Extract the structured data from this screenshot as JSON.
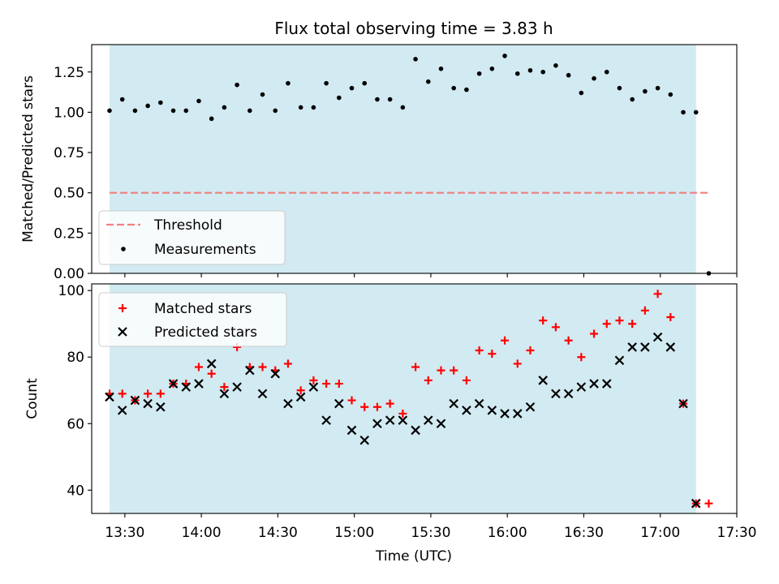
{
  "title": "Flux total observing time = 3.83 h",
  "xlabel": "Time (UTC)",
  "x_ticks": [
    "13:30",
    "14:00",
    "14:30",
    "15:00",
    "15:30",
    "16:00",
    "16:30",
    "17:00",
    "17:30"
  ],
  "chart_data": [
    {
      "type": "scatter",
      "ylabel": "Matched/Predicted stars",
      "xlim": [
        "13:17",
        "17:30"
      ],
      "ylim": [
        0,
        1.42
      ],
      "y_ticks": [
        "0.00",
        "0.25",
        "0.50",
        "0.75",
        "1.00",
        "1.25"
      ],
      "grid": false,
      "legend_position": "lower-left",
      "shaded_span": {
        "start": "13:24",
        "end": "17:14",
        "color": "#add8e6"
      },
      "threshold": {
        "name": "Threshold",
        "value": 0.5,
        "x_start": "13:24",
        "x_end": "17:19",
        "color": "#f08080"
      },
      "series": [
        {
          "name": "Measurements",
          "color": "#000000",
          "marker": "dot",
          "x": [
            "13:24",
            "13:29",
            "13:34",
            "13:39",
            "13:44",
            "13:49",
            "13:54",
            "13:59",
            "14:04",
            "14:09",
            "14:14",
            "14:19",
            "14:24",
            "14:29",
            "14:34",
            "14:39",
            "14:44",
            "14:49",
            "14:54",
            "14:59",
            "15:04",
            "15:09",
            "15:14",
            "15:19",
            "15:24",
            "15:29",
            "15:34",
            "15:39",
            "15:44",
            "15:49",
            "15:54",
            "15:59",
            "16:04",
            "16:09",
            "16:14",
            "16:19",
            "16:24",
            "16:29",
            "16:34",
            "16:39",
            "16:44",
            "16:49",
            "16:54",
            "16:59",
            "17:04",
            "17:09",
            "17:14",
            "17:19"
          ],
          "y": [
            1.01,
            1.08,
            1.01,
            1.04,
            1.06,
            1.01,
            1.01,
            1.07,
            0.96,
            1.03,
            1.17,
            1.01,
            1.11,
            1.01,
            1.18,
            1.03,
            1.03,
            1.18,
            1.09,
            1.15,
            1.18,
            1.08,
            1.08,
            1.03,
            1.33,
            1.19,
            1.27,
            1.15,
            1.14,
            1.24,
            1.27,
            1.35,
            1.24,
            1.26,
            1.25,
            1.29,
            1.23,
            1.12,
            1.21,
            1.25,
            1.15,
            1.08,
            1.13,
            1.15,
            1.11,
            1.0,
            1.0,
            0.0
          ]
        }
      ]
    },
    {
      "type": "scatter",
      "ylabel": "Count",
      "xlim": [
        "13:17",
        "17:30"
      ],
      "ylim": [
        33,
        102
      ],
      "y_ticks": [
        "40",
        "60",
        "80",
        "100"
      ],
      "grid": false,
      "legend_position": "upper-left",
      "shaded_span": {
        "start": "13:24",
        "end": "17:14",
        "color": "#add8e6"
      },
      "series": [
        {
          "name": "Matched stars",
          "color": "#ff0000",
          "marker": "plus",
          "x": [
            "13:24",
            "13:29",
            "13:34",
            "13:39",
            "13:44",
            "13:49",
            "13:54",
            "13:59",
            "14:04",
            "14:09",
            "14:14",
            "14:19",
            "14:24",
            "14:29",
            "14:34",
            "14:39",
            "14:44",
            "14:49",
            "14:54",
            "14:59",
            "15:04",
            "15:09",
            "15:14",
            "15:19",
            "15:24",
            "15:29",
            "15:34",
            "15:39",
            "15:44",
            "15:49",
            "15:54",
            "15:59",
            "16:04",
            "16:09",
            "16:14",
            "16:19",
            "16:24",
            "16:29",
            "16:34",
            "16:39",
            "16:44",
            "16:49",
            "16:54",
            "16:59",
            "17:04",
            "17:09",
            "17:14",
            "17:19"
          ],
          "y": [
            69,
            69,
            67,
            69,
            69,
            72,
            72,
            77,
            75,
            71,
            83,
            77,
            77,
            76,
            78,
            70,
            73,
            72,
            72,
            67,
            65,
            65,
            66,
            63,
            77,
            73,
            76,
            76,
            73,
            82,
            81,
            85,
            78,
            82,
            91,
            89,
            85,
            80,
            87,
            90,
            91,
            90,
            94,
            99,
            92,
            66,
            36,
            36
          ]
        },
        {
          "name": "Predicted stars",
          "color": "#000000",
          "marker": "x",
          "x": [
            "13:24",
            "13:29",
            "13:34",
            "13:39",
            "13:44",
            "13:49",
            "13:54",
            "13:59",
            "14:04",
            "14:09",
            "14:14",
            "14:19",
            "14:24",
            "14:29",
            "14:34",
            "14:39",
            "14:44",
            "14:49",
            "14:54",
            "14:59",
            "15:04",
            "15:09",
            "15:14",
            "15:19",
            "15:24",
            "15:29",
            "15:34",
            "15:39",
            "15:44",
            "15:49",
            "15:54",
            "15:59",
            "16:04",
            "16:09",
            "16:14",
            "16:19",
            "16:24",
            "16:29",
            "16:34",
            "16:39",
            "16:44",
            "16:49",
            "16:54",
            "16:59",
            "17:04",
            "17:09",
            "17:14"
          ],
          "y": [
            68,
            64,
            67,
            66,
            65,
            72,
            71,
            72,
            78,
            69,
            71,
            76,
            69,
            75,
            66,
            68,
            71,
            61,
            66,
            58,
            55,
            60,
            61,
            61,
            58,
            61,
            60,
            66,
            64,
            66,
            64,
            63,
            63,
            65,
            73,
            69,
            69,
            71,
            72,
            72,
            79,
            83,
            83,
            86,
            83,
            66,
            36
          ]
        }
      ]
    }
  ]
}
